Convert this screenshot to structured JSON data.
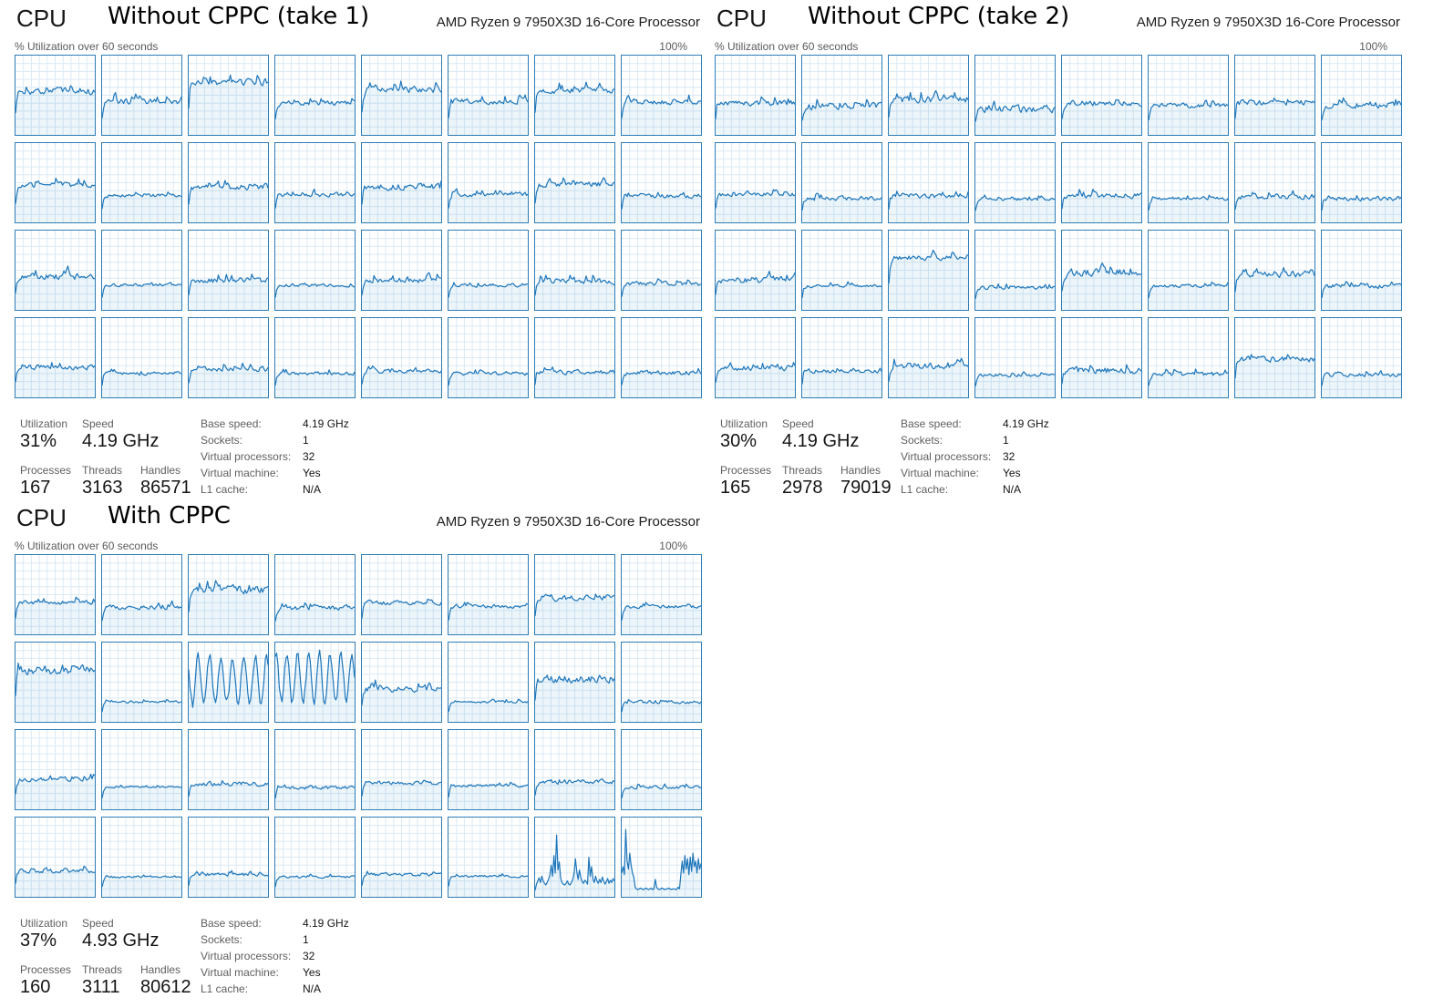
{
  "graph_style": {
    "line_color": "#1d76bb",
    "border_color": "#2e7cb5",
    "grid_color": "#dce9f4",
    "fill_color": "#117dbb",
    "fill_opacity": 0.08,
    "grid_divisions": 10,
    "points_per_graph": 60,
    "y_range_percent": [
      0,
      100
    ]
  },
  "core_grid": {
    "rows": 4,
    "cols": 8
  },
  "panels": [
    {
      "id": "without-cppc-take-1",
      "app_title": "CPU",
      "annotation_title": "Without CPPC (take 1)",
      "processor": "AMD Ryzen 9 7950X3D 16-Core Processor",
      "axis_left": "% Utilization over 60 seconds",
      "axis_right": "100%",
      "stats": {
        "utilization_label": "Utilization",
        "utilization": "31%",
        "speed_label": "Speed",
        "speed": "4.19 GHz",
        "processes_label": "Processes",
        "processes": "167",
        "threads_label": "Threads",
        "threads": "3163",
        "handles_label": "Handles",
        "handles": "86571",
        "kv": [
          {
            "k": "Base speed:",
            "v": "4.19 GHz"
          },
          {
            "k": "Sockets:",
            "v": "1"
          },
          {
            "k": "Virtual processors:",
            "v": "32"
          },
          {
            "k": "Virtual machine:",
            "v": "Yes"
          },
          {
            "k": "L1 cache:",
            "v": "N/A"
          }
        ]
      },
      "cells": [
        {
          "b": 55,
          "a": 6,
          "s": 1
        },
        {
          "b": 42,
          "a": 5,
          "s": 2
        },
        {
          "b": 66,
          "a": 6,
          "s": 3
        },
        {
          "b": 40,
          "a": 4,
          "s": 4
        },
        {
          "b": 57,
          "a": 6,
          "s": 5
        },
        {
          "b": 42,
          "a": 5,
          "s": 6
        },
        {
          "b": 56,
          "a": 6,
          "s": 7
        },
        {
          "b": 42,
          "a": 5,
          "s": 8
        },
        {
          "b": 47,
          "a": 5,
          "s": 9
        },
        {
          "b": 34,
          "a": 3,
          "s": 10
        },
        {
          "b": 45,
          "a": 6,
          "s": 11
        },
        {
          "b": 35,
          "a": 4,
          "s": 12
        },
        {
          "b": 45,
          "a": 6,
          "s": 13
        },
        {
          "b": 35,
          "a": 4,
          "s": 14
        },
        {
          "b": 48,
          "a": 5,
          "s": 15
        },
        {
          "b": 33,
          "a": 4,
          "s": 16
        },
        {
          "b": 42,
          "a": 6,
          "s": 17
        },
        {
          "b": 31,
          "a": 3,
          "s": 18
        },
        {
          "b": 37,
          "a": 5,
          "s": 19
        },
        {
          "b": 31,
          "a": 3,
          "s": 20
        },
        {
          "b": 37,
          "a": 5,
          "s": 21
        },
        {
          "b": 31,
          "a": 3,
          "s": 22
        },
        {
          "b": 36,
          "a": 5,
          "s": 23
        },
        {
          "b": 33,
          "a": 4,
          "s": 24
        },
        {
          "b": 38,
          "a": 5,
          "s": 25
        },
        {
          "b": 30,
          "a": 3,
          "s": 26
        },
        {
          "b": 36,
          "a": 5,
          "s": 27
        },
        {
          "b": 30,
          "a": 3,
          "s": 28
        },
        {
          "b": 33,
          "a": 4,
          "s": 29
        },
        {
          "b": 30,
          "a": 3,
          "s": 30
        },
        {
          "b": 32,
          "a": 4,
          "s": 31
        },
        {
          "b": 31,
          "a": 4,
          "s": 32
        }
      ]
    },
    {
      "id": "without-cppc-take-2",
      "app_title": "CPU",
      "annotation_title": "Without CPPC (take 2)",
      "processor": "AMD Ryzen 9 7950X3D 16-Core Processor",
      "axis_left": "% Utilization over 60 seconds",
      "axis_right": "100%",
      "stats": {
        "utilization_label": "Utilization",
        "utilization": "30%",
        "speed_label": "Speed",
        "speed": "4.19 GHz",
        "processes_label": "Processes",
        "processes": "165",
        "threads_label": "Threads",
        "threads": "2978",
        "handles_label": "Handles",
        "handles": "79019",
        "kv": [
          {
            "k": "Base speed:",
            "v": "4.19 GHz"
          },
          {
            "k": "Sockets:",
            "v": "1"
          },
          {
            "k": "Virtual processors:",
            "v": "32"
          },
          {
            "k": "Virtual machine:",
            "v": "Yes"
          },
          {
            "k": "L1 cache:",
            "v": "N/A"
          }
        ]
      },
      "cells": [
        {
          "b": 40,
          "a": 5,
          "s": 33
        },
        {
          "b": 36,
          "a": 6,
          "s": 34
        },
        {
          "b": 44,
          "a": 6,
          "s": 35
        },
        {
          "b": 33,
          "a": 7,
          "s": 36
        },
        {
          "b": 40,
          "a": 5,
          "s": 37
        },
        {
          "b": 37,
          "a": 4,
          "s": 38
        },
        {
          "b": 41,
          "a": 5,
          "s": 39
        },
        {
          "b": 37,
          "a": 5,
          "s": 40
        },
        {
          "b": 35,
          "a": 4,
          "s": 41
        },
        {
          "b": 30,
          "a": 4,
          "s": 42
        },
        {
          "b": 33,
          "a": 4,
          "s": 43
        },
        {
          "b": 29,
          "a": 3,
          "s": 44
        },
        {
          "b": 34,
          "a": 5,
          "s": 45
        },
        {
          "b": 30,
          "a": 3,
          "s": 46
        },
        {
          "b": 32,
          "a": 4,
          "s": 47
        },
        {
          "b": 30,
          "a": 4,
          "s": 48
        },
        {
          "b": 38,
          "a": 6,
          "s": 49
        },
        {
          "b": 30,
          "a": 3,
          "s": 50
        },
        {
          "b": 66,
          "a": 5,
          "s": 51
        },
        {
          "b": 28,
          "a": 3,
          "s": 52
        },
        {
          "b": 47,
          "a": 7,
          "s": 53
        },
        {
          "b": 30,
          "a": 3,
          "s": 54
        },
        {
          "b": 45,
          "a": 6,
          "s": 55
        },
        {
          "b": 30,
          "a": 4,
          "s": 56
        },
        {
          "b": 37,
          "a": 5,
          "s": 57
        },
        {
          "b": 33,
          "a": 4,
          "s": 58
        },
        {
          "b": 40,
          "a": 6,
          "s": 59
        },
        {
          "b": 28,
          "a": 3,
          "s": 60
        },
        {
          "b": 34,
          "a": 6,
          "s": 61
        },
        {
          "b": 29,
          "a": 4,
          "s": 62
        },
        {
          "b": 48,
          "a": 5,
          "s": 63
        },
        {
          "b": 29,
          "a": 4,
          "s": 64
        }
      ]
    },
    {
      "id": "with-cppc",
      "app_title": "CPU",
      "annotation_title": "With CPPC",
      "processor": "AMD Ryzen 9 7950X3D 16-Core Processor",
      "axis_left": "% Utilization over 60 seconds",
      "axis_right": "100%",
      "stats": {
        "utilization_label": "Utilization",
        "utilization": "37%",
        "speed_label": "Speed",
        "speed": "4.93 GHz",
        "processes_label": "Processes",
        "processes": "160",
        "threads_label": "Threads",
        "threads": "3111",
        "handles_label": "Handles",
        "handles": "80612",
        "kv": [
          {
            "k": "Base speed:",
            "v": "4.19 GHz"
          },
          {
            "k": "Sockets:",
            "v": "1"
          },
          {
            "k": "Virtual processors:",
            "v": "32"
          },
          {
            "k": "Virtual machine:",
            "v": "Yes"
          },
          {
            "k": "L1 cache:",
            "v": "N/A"
          }
        ]
      },
      "cells": [
        {
          "b": 40,
          "a": 4,
          "s": 65
        },
        {
          "b": 34,
          "a": 4,
          "s": 66
        },
        {
          "b": 56,
          "a": 7,
          "s": 67
        },
        {
          "b": 33,
          "a": 4,
          "s": 68
        },
        {
          "b": 40,
          "a": 4,
          "s": 69
        },
        {
          "b": 35,
          "a": 3,
          "s": 70
        },
        {
          "b": 46,
          "a": 6,
          "s": 71
        },
        {
          "b": 35,
          "a": 3,
          "s": 72
        },
        {
          "b": 65,
          "a": 8,
          "s": 73
        },
        {
          "b": 25,
          "a": 2,
          "s": 74
        },
        {
          "t": "w",
          "b": 53,
          "a": 5,
          "wa": 30,
          "wf": 0.74,
          "ph": 2.6,
          "s": 75
        },
        {
          "t": "w",
          "b": 55,
          "a": 5,
          "wa": 31,
          "wf": 0.78,
          "ph": 1.1,
          "s": 76
        },
        {
          "b": 42,
          "a": 6,
          "s": 77
        },
        {
          "b": 25,
          "a": 2,
          "s": 78
        },
        {
          "b": 54,
          "a": 7,
          "s": 79
        },
        {
          "b": 25,
          "a": 3,
          "s": 80
        },
        {
          "b": 38,
          "a": 4,
          "s": 81
        },
        {
          "b": 28,
          "a": 2,
          "s": 82
        },
        {
          "b": 32,
          "a": 4,
          "s": 83
        },
        {
          "b": 27,
          "a": 3,
          "s": 84
        },
        {
          "b": 33,
          "a": 3,
          "s": 85
        },
        {
          "b": 30,
          "a": 3,
          "s": 86
        },
        {
          "b": 35,
          "a": 4,
          "s": 87
        },
        {
          "b": 28,
          "a": 3,
          "s": 88
        },
        {
          "b": 33,
          "a": 4,
          "s": 89
        },
        {
          "b": 25,
          "a": 2,
          "s": 90
        },
        {
          "b": 28,
          "a": 3,
          "s": 91
        },
        {
          "b": 25,
          "a": 2,
          "s": 92
        },
        {
          "b": 28,
          "a": 3,
          "s": 93
        },
        {
          "b": 26,
          "a": 2,
          "s": 94
        },
        {
          "t": "x",
          "v": [
            8,
            16,
            20,
            24,
            18,
            26,
            20,
            17,
            15,
            18,
            22,
            28,
            40,
            26,
            52,
            30,
            78,
            34,
            44,
            24,
            18,
            16,
            15,
            17,
            20,
            16,
            15,
            18,
            22,
            30,
            48,
            32,
            22,
            34,
            24,
            19,
            17,
            21,
            19,
            16,
            50,
            26,
            38,
            23,
            18,
            26,
            20,
            17,
            22,
            18,
            25,
            20,
            16,
            19,
            23,
            17,
            21,
            18,
            23,
            20
          ]
        },
        {
          "t": "x",
          "v": [
            30,
            38,
            28,
            85,
            45,
            35,
            55,
            40,
            30,
            25,
            12,
            10,
            9,
            10,
            11,
            10,
            9,
            10,
            11,
            10,
            9,
            10,
            11,
            9,
            10,
            22,
            12,
            10,
            9,
            10,
            11,
            10,
            9,
            10,
            10,
            11,
            10,
            9,
            10,
            10,
            9,
            10,
            12,
            10,
            28,
            45,
            30,
            52,
            35,
            48,
            28,
            50,
            32,
            55,
            38,
            45,
            30,
            48,
            35,
            42
          ]
        }
      ]
    }
  ]
}
